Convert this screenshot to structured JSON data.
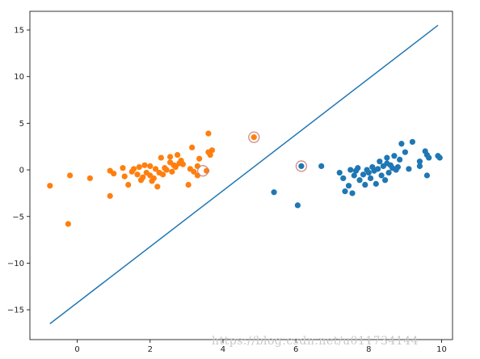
{
  "chart_data": {
    "type": "scatter",
    "title": "",
    "xlabel": "",
    "ylabel": "",
    "xlim": [
      -1.3,
      10.3
    ],
    "ylim": [
      -18.2,
      17.0
    ],
    "x_ticks": [
      0,
      2,
      4,
      6,
      8,
      10
    ],
    "y_ticks": [
      -15,
      -10,
      -5,
      0,
      5,
      10,
      15
    ],
    "grid": false,
    "series": [
      {
        "color": "#ff7f0e",
        "points": [
          [
            -0.75,
            -1.7
          ],
          [
            -0.25,
            -5.8
          ],
          [
            -0.2,
            -0.6
          ],
          [
            0.35,
            -0.9
          ],
          [
            0.9,
            -2.8
          ],
          [
            0.9,
            -0.1
          ],
          [
            1.0,
            -0.4
          ],
          [
            1.25,
            0.2
          ],
          [
            1.3,
            -0.7
          ],
          [
            1.4,
            -1.6
          ],
          [
            1.5,
            -0.2
          ],
          [
            1.55,
            0.1
          ],
          [
            1.65,
            -0.5
          ],
          [
            1.7,
            0.3
          ],
          [
            1.75,
            -1.1
          ],
          [
            1.8,
            -0.8
          ],
          [
            1.85,
            0.5
          ],
          [
            1.9,
            -0.3
          ],
          [
            2.0,
            -0.6
          ],
          [
            2.0,
            0.4
          ],
          [
            2.05,
            -1.2
          ],
          [
            2.1,
            -0.9
          ],
          [
            2.15,
            0.1
          ],
          [
            2.2,
            -1.8
          ],
          [
            2.25,
            -0.3
          ],
          [
            2.3,
            1.3
          ],
          [
            2.35,
            -0.5
          ],
          [
            2.4,
            0.2
          ],
          [
            2.45,
            0.0
          ],
          [
            2.55,
            0.8
          ],
          [
            2.55,
            1.4
          ],
          [
            2.6,
            -0.2
          ],
          [
            2.65,
            0.5
          ],
          [
            2.7,
            0.3
          ],
          [
            2.75,
            1.6
          ],
          [
            2.8,
            0.7
          ],
          [
            2.85,
            1.0
          ],
          [
            2.9,
            0.6
          ],
          [
            3.05,
            -1.6
          ],
          [
            3.1,
            0.1
          ],
          [
            3.15,
            2.4
          ],
          [
            3.2,
            -0.2
          ],
          [
            3.3,
            0.4
          ],
          [
            3.35,
            1.2
          ],
          [
            3.3,
            -0.6
          ],
          [
            3.55,
            -0.1
          ],
          [
            3.6,
            3.9
          ],
          [
            3.6,
            1.9
          ],
          [
            3.65,
            1.6
          ],
          [
            3.7,
            2.1
          ],
          [
            4.85,
            3.5
          ]
        ]
      },
      {
        "color": "#1f77b4",
        "points": [
          [
            5.4,
            -2.4
          ],
          [
            6.05,
            -3.8
          ],
          [
            6.15,
            0.4
          ],
          [
            6.7,
            0.4
          ],
          [
            7.2,
            -0.3
          ],
          [
            7.3,
            -0.9
          ],
          [
            7.35,
            -2.3
          ],
          [
            7.45,
            -1.7
          ],
          [
            7.5,
            0.0
          ],
          [
            7.55,
            -2.5
          ],
          [
            7.6,
            -0.6
          ],
          [
            7.65,
            -0.1
          ],
          [
            7.7,
            0.2
          ],
          [
            7.75,
            -1.1
          ],
          [
            7.85,
            -0.5
          ],
          [
            7.9,
            -1.6
          ],
          [
            7.95,
            0.0
          ],
          [
            8.0,
            -0.3
          ],
          [
            8.05,
            -0.9
          ],
          [
            8.1,
            0.3
          ],
          [
            8.15,
            -0.1
          ],
          [
            8.2,
            -1.5
          ],
          [
            8.25,
            0.1
          ],
          [
            8.3,
            0.9
          ],
          [
            8.35,
            -0.6
          ],
          [
            8.4,
            0.4
          ],
          [
            8.45,
            -1.1
          ],
          [
            8.5,
            1.3
          ],
          [
            8.5,
            0.7
          ],
          [
            8.55,
            -0.3
          ],
          [
            8.6,
            0.5
          ],
          [
            8.65,
            0.2
          ],
          [
            8.7,
            1.5
          ],
          [
            8.75,
            0.0
          ],
          [
            8.8,
            0.3
          ],
          [
            8.85,
            1.1
          ],
          [
            8.9,
            2.8
          ],
          [
            9.0,
            1.9
          ],
          [
            9.1,
            0.1
          ],
          [
            9.2,
            3.0
          ],
          [
            9.4,
            0.9
          ],
          [
            9.4,
            0.4
          ],
          [
            9.55,
            2.0
          ],
          [
            9.6,
            1.6
          ],
          [
            9.6,
            -0.6
          ],
          [
            9.65,
            1.3
          ],
          [
            9.9,
            1.5
          ],
          [
            9.95,
            1.3
          ]
        ]
      }
    ],
    "line": {
      "color": "#1f77b4",
      "points": [
        [
          -0.75,
          -16.5
        ],
        [
          9.9,
          15.5
        ]
      ]
    },
    "support_vectors": {
      "color": "#d0807a",
      "points": [
        [
          3.45,
          -0.1
        ],
        [
          4.85,
          3.5
        ],
        [
          6.15,
          0.4
        ]
      ]
    }
  },
  "watermark": "https://blog.csdn.net/u011734144"
}
